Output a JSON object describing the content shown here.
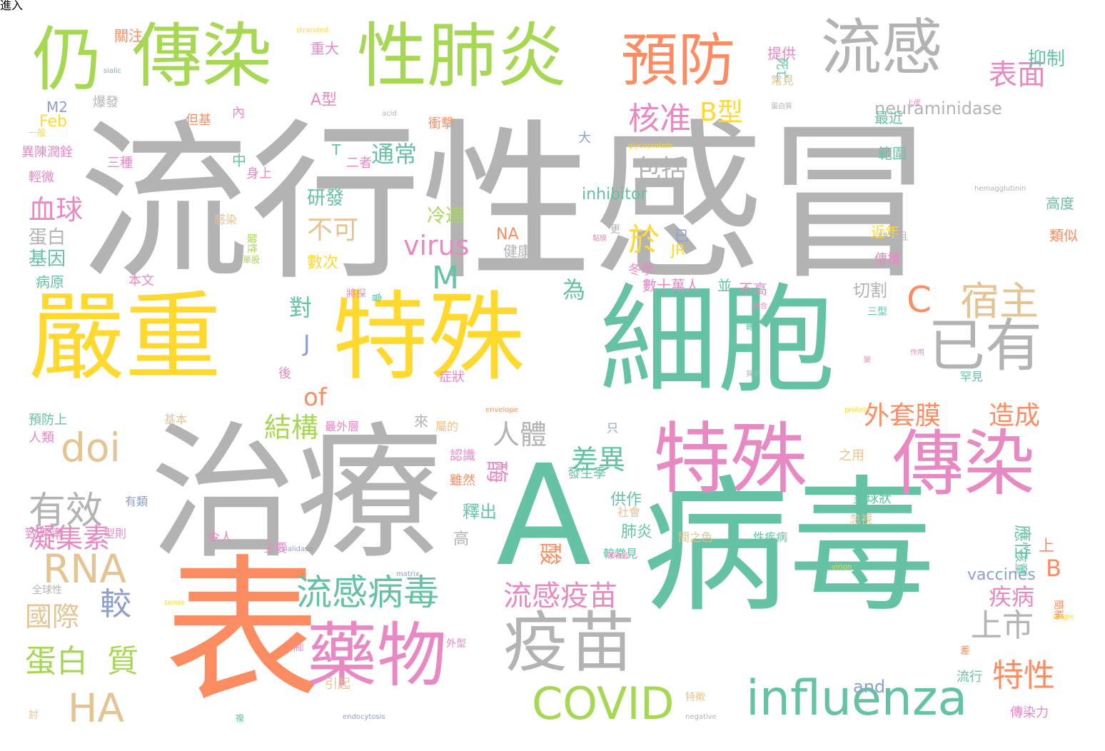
{
  "palette": {
    "gray": "#b3b3b3",
    "green": "#66c2a5",
    "orange": "#fc8d62",
    "yellow": "#ffd92f",
    "lime": "#a6d854",
    "pink": "#e78ac3",
    "tan": "#e5c494",
    "blue": "#8da0cb"
  },
  "words": [
    {
      "text": "流行性感冒",
      "color": "gray"
    },
    {
      "text": "細胞",
      "color": "green"
    },
    {
      "text": "病毒",
      "color": "green"
    },
    {
      "text": "A",
      "color": "green"
    },
    {
      "text": "治療",
      "color": "gray"
    },
    {
      "text": "表",
      "color": "orange"
    },
    {
      "text": "嚴重",
      "color": "yellow"
    },
    {
      "text": "特殊",
      "color": "yellow"
    },
    {
      "text": "特殊",
      "color": "pink"
    },
    {
      "text": "傳染",
      "color": "pink"
    },
    {
      "text": "傳染",
      "color": "lime"
    },
    {
      "text": "性肺炎",
      "color": "lime"
    },
    {
      "text": "仍",
      "color": "lime"
    },
    {
      "text": "預防",
      "color": "orange"
    },
    {
      "text": "流感",
      "color": "gray"
    },
    {
      "text": "藥物",
      "color": "pink"
    },
    {
      "text": "疫苗",
      "color": "gray"
    },
    {
      "text": "influenza",
      "color": "green"
    },
    {
      "text": "COVID",
      "color": "lime"
    },
    {
      "text": "已有",
      "color": "gray"
    },
    {
      "text": "流感病毒",
      "color": "green"
    },
    {
      "text": "流感疫苗",
      "color": "pink"
    },
    {
      "text": "doi",
      "color": "tan"
    },
    {
      "text": "RNA",
      "color": "tan"
    },
    {
      "text": "HA",
      "color": "tan"
    },
    {
      "text": "有效",
      "color": "gray"
    },
    {
      "text": "宿主",
      "color": "tan"
    },
    {
      "text": "C",
      "color": "orange"
    },
    {
      "text": "表面",
      "color": "pink"
    },
    {
      "text": "核准",
      "color": "pink"
    },
    {
      "text": "上市",
      "color": "gray"
    },
    {
      "text": "特性",
      "color": "orange"
    },
    {
      "text": "蛋白",
      "color": "lime"
    },
    {
      "text": "質",
      "color": "lime"
    },
    {
      "text": "較",
      "color": "blue"
    },
    {
      "text": "國際",
      "color": "tan"
    },
    {
      "text": "凝集素",
      "color": "pink"
    },
    {
      "text": "血球",
      "color": "pink"
    },
    {
      "text": "結構",
      "color": "lime"
    },
    {
      "text": "差異",
      "color": "green"
    },
    {
      "text": "外套膜",
      "color": "orange"
    },
    {
      "text": "造成",
      "color": "orange"
    },
    {
      "text": "人體",
      "color": "gray"
    },
    {
      "text": "包括",
      "color": "gray"
    },
    {
      "text": "於",
      "color": "yellow"
    },
    {
      "text": "virus",
      "color": "pink"
    },
    {
      "text": "M",
      "color": "green"
    },
    {
      "text": "B型",
      "color": "yellow"
    },
    {
      "text": "of",
      "color": "orange"
    },
    {
      "text": "不可",
      "color": "tan"
    },
    {
      "text": "酶",
      "color": "pink"
    },
    {
      "text": "酸",
      "color": "orange"
    },
    {
      "text": "疾病",
      "color": "pink"
    },
    {
      "text": "B",
      "color": "orange"
    },
    {
      "text": "neuraminidase",
      "color": "gray"
    },
    {
      "text": "抑制",
      "color": "green"
    },
    {
      "text": "vaccines",
      "color": "blue"
    },
    {
      "text": "and",
      "color": "blue"
    },
    {
      "text": "通常",
      "color": "green"
    },
    {
      "text": "對",
      "color": "green"
    },
    {
      "text": "J",
      "color": "blue"
    },
    {
      "text": "為",
      "color": "green"
    },
    {
      "text": "切割",
      "color": "gray"
    },
    {
      "text": "A型",
      "color": "pink"
    },
    {
      "text": "inhibitor",
      "color": "green"
    },
    {
      "text": "冷適",
      "color": "lime"
    },
    {
      "text": "研發",
      "color": "green"
    },
    {
      "text": "基因",
      "color": "green"
    },
    {
      "text": "蛋白",
      "color": "gray"
    },
    {
      "text": "病原",
      "color": "green"
    },
    {
      "text": "本文",
      "color": "pink"
    },
    {
      "text": "數次",
      "color": "yellow"
    },
    {
      "text": "釋出",
      "color": "green"
    },
    {
      "text": "肺炎",
      "color": "green"
    },
    {
      "text": "供作",
      "color": "green"
    },
    {
      "text": "應性",
      "color": "green"
    },
    {
      "text": "孩童",
      "color": "green"
    },
    {
      "text": "上",
      "color": "orange"
    },
    {
      "text": "高",
      "color": "gray"
    },
    {
      "text": "NA",
      "color": "orange"
    },
    {
      "text": "健康",
      "color": "gray"
    },
    {
      "text": "JR",
      "color": "yellow"
    },
    {
      "text": "已",
      "color": "blue"
    },
    {
      "text": "數十萬人",
      "color": "pink"
    },
    {
      "text": "並",
      "color": "green"
    },
    {
      "text": "不高",
      "color": "pink"
    },
    {
      "text": "冬季",
      "color": "pink"
    },
    {
      "text": "近年",
      "color": "yellow"
    },
    {
      "text": "傳播",
      "color": "pink"
    },
    {
      "text": "類似",
      "color": "orange"
    },
    {
      "text": "高度",
      "color": "green"
    },
    {
      "text": "範圍",
      "color": "green"
    },
    {
      "text": "最近",
      "color": "green"
    },
    {
      "text": "提供",
      "color": "pink"
    },
    {
      "text": "死亡",
      "color": "green"
    },
    {
      "text": "常見",
      "color": "tan"
    },
    {
      "text": "關注",
      "color": "orange"
    },
    {
      "text": "重大",
      "color": "pink"
    },
    {
      "text": "M2",
      "color": "blue"
    },
    {
      "text": "爆發",
      "color": "gray"
    },
    {
      "text": "Feb",
      "color": "yellow"
    },
    {
      "text": "但基",
      "color": "orange"
    },
    {
      "text": "衝擊",
      "color": "orange"
    },
    {
      "text": "內",
      "color": "pink"
    },
    {
      "text": "中",
      "color": "green"
    },
    {
      "text": "身上",
      "color": "pink"
    },
    {
      "text": "T",
      "color": "green"
    },
    {
      "text": "二者",
      "color": "pink"
    },
    {
      "text": "三種",
      "color": "pink"
    },
    {
      "text": "異陳潤銓",
      "color": "pink"
    },
    {
      "text": "輕微",
      "color": "pink"
    },
    {
      "text": "大",
      "color": "blue"
    },
    {
      "text": "感染",
      "color": "tan"
    },
    {
      "text": "酸性",
      "color": "lime"
    },
    {
      "text": "單股",
      "color": "lime"
    },
    {
      "text": "將探",
      "color": "pink"
    },
    {
      "text": "會",
      "color": "green"
    },
    {
      "text": "預防上",
      "color": "green"
    },
    {
      "text": "人類",
      "color": "pink"
    },
    {
      "text": "基本",
      "color": "tan"
    },
    {
      "text": "後",
      "color": "pink"
    },
    {
      "text": "症狀",
      "color": "pink"
    },
    {
      "text": "最外層",
      "color": "pink"
    },
    {
      "text": "來",
      "color": "gray"
    },
    {
      "text": "屬的",
      "color": "tan"
    },
    {
      "text": "認識",
      "color": "pink"
    },
    {
      "text": "雖然",
      "color": "orange"
    },
    {
      "text": "發生季",
      "color": "green"
    },
    {
      "text": "只",
      "color": "blue"
    },
    {
      "text": "之用",
      "color": "tan"
    },
    {
      "text": "呈球狀",
      "color": "green"
    },
    {
      "text": "社會",
      "color": "tan"
    },
    {
      "text": "有類",
      "color": "blue"
    },
    {
      "text": "致死率",
      "color": "pink"
    },
    {
      "text": "型則",
      "color": "pink"
    },
    {
      "text": "主要",
      "color": "pink"
    },
    {
      "text": "令人",
      "color": "pink"
    },
    {
      "text": "間之色",
      "color": "tan"
    },
    {
      "text": "性疾病",
      "color": "green"
    },
    {
      "text": "較常見",
      "color": "green"
    },
    {
      "text": "忽視",
      "color": "tan"
    },
    {
      "text": "三型",
      "color": "green"
    },
    {
      "text": "罕見",
      "color": "green"
    },
    {
      "text": "絲狀且",
      "color": "gray"
    },
    {
      "text": "全球性",
      "color": "gray"
    },
    {
      "text": "外型",
      "color": "pink"
    },
    {
      "text": "引起",
      "color": "tan"
    },
    {
      "text": "流行",
      "color": "green"
    },
    {
      "text": "傳染力",
      "color": "pink"
    },
    {
      "text": "簡稱",
      "color": "orange"
    },
    {
      "text": "呈",
      "color": "pink"
    },
    {
      "text": "討",
      "color": "tan"
    },
    {
      "text": "特徵",
      "color": "tan"
    },
    {
      "text": "差",
      "color": "orange"
    },
    {
      "text": "一般",
      "color": "yellow"
    },
    {
      "text": "更",
      "color": "gray"
    },
    {
      "text": "stranded",
      "color": "yellow"
    },
    {
      "text": "sialic",
      "color": "blue"
    },
    {
      "text": "acid",
      "color": "gray"
    },
    {
      "text": "glycoprotein",
      "color": "yellow"
    },
    {
      "text": "hemagglutinin",
      "color": "gray"
    },
    {
      "text": "envelope",
      "color": "orange"
    },
    {
      "text": "protein",
      "color": "yellow"
    },
    {
      "text": "sialidase",
      "color": "blue"
    },
    {
      "text": "matrix",
      "color": "blue"
    },
    {
      "text": "virion",
      "color": "yellow"
    },
    {
      "text": "single",
      "color": "yellow"
    },
    {
      "text": "sense",
      "color": "yellow"
    },
    {
      "text": "endocytosis",
      "color": "blue"
    },
    {
      "text": "negative",
      "color": "gray"
    },
    {
      "text": "呼吸道",
      "color": "pink"
    },
    {
      "text": "黏膜",
      "color": "pink"
    },
    {
      "text": "蛋白質",
      "color": "gray"
    },
    {
      "text": "上皮",
      "color": "pink"
    },
    {
      "text": "融合",
      "color": "pink"
    },
    {
      "text": "轉錄",
      "color": "green"
    },
    {
      "text": "質子",
      "color": "gray"
    },
    {
      "text": "作用",
      "color": "pink"
    },
    {
      "text": "變",
      "color": "pink"
    },
    {
      "text": "複",
      "color": "green"
    },
    {
      "text": "進入",
      "color": "pink"
    }
  ]
}
